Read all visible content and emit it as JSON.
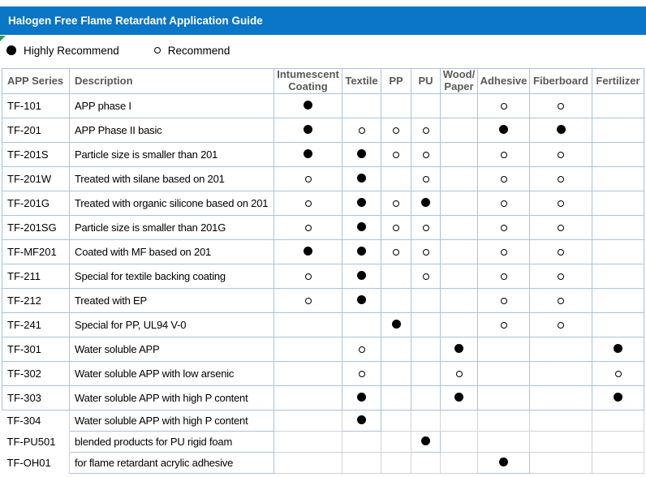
{
  "title_bar": {
    "title": "Halogen Free Flame Retardant Application Guide"
  },
  "legend": {
    "highly_label": "Highly Recommend",
    "highly_symbol": "filled-circle",
    "recommend_label": "Recommend",
    "recommend_symbol": "open-circle"
  },
  "table": {
    "columns": [
      "APP Series",
      "Description",
      "Intumescent\nCoating",
      "Textile",
      "PP",
      "PU",
      "Wood/\nPaper",
      "Adhesive",
      "Fiberboard",
      "Fertilizer"
    ],
    "mark_values": {
      "highly": "Highly Recommend",
      "recommend": "Recommend"
    },
    "rows": [
      {
        "series": "TF-101",
        "description": "APP phase I",
        "marks": [
          "highly",
          "",
          "",
          "",
          "",
          "recommend",
          "recommend",
          ""
        ]
      },
      {
        "series": "TF-201",
        "description": "APP Phase II basic",
        "marks": [
          "highly",
          "recommend",
          "recommend",
          "recommend",
          "",
          "highly",
          "highly",
          ""
        ]
      },
      {
        "series": "TF-201S",
        "description": "Particle size is smaller than 201",
        "marks": [
          "highly",
          "highly",
          "recommend",
          "recommend",
          "",
          "recommend",
          "recommend",
          ""
        ]
      },
      {
        "series": "TF-201W",
        "description": "Treated with silane based on 201",
        "marks": [
          "recommend",
          "highly",
          "",
          "recommend",
          "",
          "recommend",
          "recommend",
          ""
        ]
      },
      {
        "series": "TF-201G",
        "description": "Treated with organic silicone based on 201",
        "marks": [
          "recommend",
          "highly",
          "recommend",
          "highly",
          "",
          "recommend",
          "recommend",
          ""
        ]
      },
      {
        "series": "TF-201SG",
        "description": "Particle size is smaller than 201G",
        "marks": [
          "recommend",
          "highly",
          "recommend",
          "recommend",
          "",
          "recommend",
          "recommend",
          ""
        ]
      },
      {
        "series": "TF-MF201",
        "description": "Coated with MF based on 201",
        "marks": [
          "highly",
          "highly",
          "recommend",
          "recommend",
          "",
          "recommend",
          "recommend",
          ""
        ]
      },
      {
        "series": "TF-211",
        "description": "Special for textile backing coating",
        "marks": [
          "recommend",
          "highly",
          "",
          "recommend",
          "",
          "recommend",
          "recommend",
          ""
        ]
      },
      {
        "series": "TF-212",
        "description": "Treated with EP",
        "marks": [
          "recommend",
          "highly",
          "",
          "",
          "",
          "recommend",
          "recommend",
          ""
        ]
      },
      {
        "series": "TF-241",
        "description": "Special for PP, UL94 V-0",
        "marks": [
          "",
          "",
          "highly",
          "",
          "",
          "recommend",
          "recommend",
          ""
        ]
      },
      {
        "series": "TF-301",
        "description": "Water soluble APP",
        "marks": [
          "",
          "recommend",
          "",
          "",
          "highly",
          "",
          "",
          "highly"
        ]
      },
      {
        "series": "TF-302",
        "description": "Water soluble APP with low arsenic",
        "marks": [
          "",
          "recommend",
          "",
          "",
          "recommend",
          "",
          "",
          "recommend"
        ]
      },
      {
        "series": "TF-303",
        "description": "Water soluble APP with high P content",
        "marks": [
          "",
          "highly",
          "",
          "",
          "highly",
          "",
          "",
          "highly"
        ]
      },
      {
        "series": "TF-304",
        "description": "Water soluble APP with high P content",
        "marks": [
          "",
          "highly",
          "",
          "",
          "",
          "",
          "",
          ""
        ]
      },
      {
        "series": "TF-PU501",
        "description": "blended products for PU rigid foam",
        "marks": [
          "",
          "",
          "",
          "highly",
          "",
          "",
          "",
          ""
        ]
      },
      {
        "series": "TF-OH01",
        "description": "for flame retardant acrylic adhesive",
        "marks": [
          "",
          "",
          "",
          "",
          "",
          "highly",
          "",
          ""
        ]
      }
    ]
  },
  "colors": {
    "title_bar_bg": "#0B75C6",
    "grid_border": "#A9C2DE",
    "grid_border_gray": "#D2D2D2",
    "header_text": "#595959",
    "mark": "#000000",
    "flag_green": "#2F9E41"
  }
}
